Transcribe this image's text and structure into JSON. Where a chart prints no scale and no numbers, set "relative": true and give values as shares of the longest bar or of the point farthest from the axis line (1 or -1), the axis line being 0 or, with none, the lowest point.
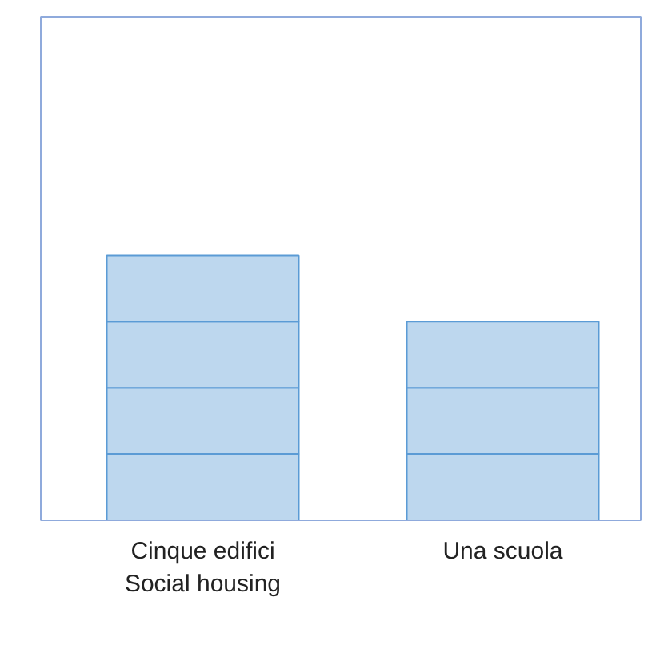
{
  "chart_data": {
    "type": "bar",
    "relative": true,
    "stacked": true,
    "categories": [
      "Cinque edifici\nSocial housing",
      "Una scuola"
    ],
    "series": [
      {
        "color": "#bdd7ee",
        "values": [
          0.25,
          0.25
        ]
      },
      {
        "color": "#bdd7ee",
        "values": [
          0.25,
          0.25
        ]
      },
      {
        "color": "#bdd7ee",
        "values": [
          0.25,
          0.25
        ]
      },
      {
        "color": "#bdd7ee",
        "values": [
          0.25,
          null
        ]
      }
    ],
    "grid": false
  }
}
